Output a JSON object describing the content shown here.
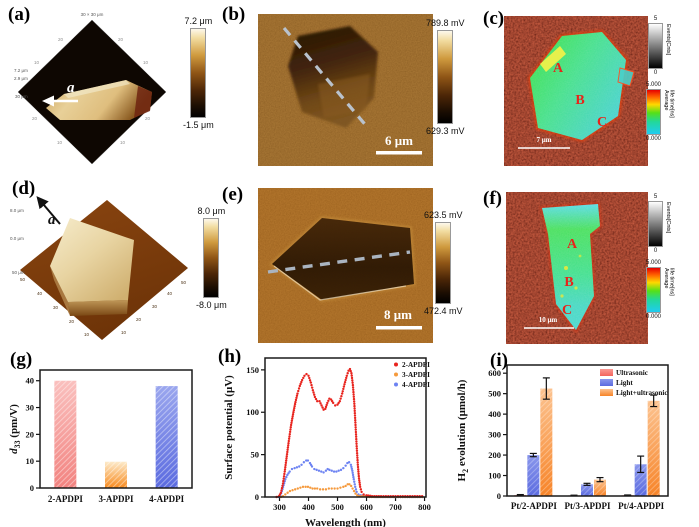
{
  "figure": {
    "panels": {
      "a": {
        "letter": "(a)",
        "arrow_label": "a",
        "top_size_label": "30 × 30 μm",
        "side_labels": [
          "7.2 μm",
          "2.9 μm",
          "30 μm"
        ],
        "ticks": [
          "10",
          "20",
          "20",
          "10",
          "20",
          "10",
          "10",
          "20"
        ],
        "colorbar": {
          "max": "7.2 μm",
          "min": "-1.5 μm"
        }
      },
      "b": {
        "letter": "(b)",
        "scale_bar": "6 μm",
        "colorbar": {
          "max": "789.8 mV",
          "min": "629.3 mV"
        }
      },
      "c": {
        "letter": "(c)",
        "scale_bar": "7 μm",
        "regions": [
          "A",
          "B",
          "C"
        ],
        "colorbar_events": {
          "max": "5",
          "min": "0",
          "title": "Events[Cnts]"
        },
        "colorbar_lifetime": {
          "max": "5.000",
          "min": "0.000",
          "title_line1": "Average",
          "title_line2": "life time[ns]"
        }
      },
      "d": {
        "letter": "(d)",
        "arrow_label": "a",
        "side_labels": [
          "8.0 μm",
          "0.0 μm",
          "50 μm"
        ],
        "ticks": [
          "50",
          "40",
          "30",
          "20",
          "10",
          "10",
          "20",
          "30",
          "40",
          "50"
        ],
        "colorbar": {
          "max": "8.0 μm",
          "min": "-8.0 μm"
        }
      },
      "e": {
        "letter": "(e)",
        "scale_bar": "8 μm",
        "colorbar": {
          "max": "623.5 mV",
          "min": "472.4 mV"
        }
      },
      "f": {
        "letter": "(f)",
        "scale_bar": "10 μm",
        "regions": [
          "A",
          "B",
          "C"
        ],
        "colorbar_events": {
          "max": "5",
          "min": "0",
          "title": "Events[Cnts]"
        },
        "colorbar_lifetime": {
          "max": "5.000",
          "min": "0.000",
          "title_line1": "Average",
          "title_line2": "life time[ns]"
        }
      },
      "g": {
        "letter": "(g)"
      },
      "h": {
        "letter": "(h)"
      },
      "i": {
        "letter": "(i)"
      }
    }
  },
  "chart_data": [
    {
      "panel": "g",
      "type": "bar",
      "categories": [
        "2-APDPI",
        "3-APDPI",
        "4-APDPI"
      ],
      "values": [
        40,
        9.8,
        38
      ],
      "ylabel": "*d*_{33} (pm/V)",
      "ylim": [
        0,
        44
      ],
      "yticks": [
        0,
        10,
        20,
        30,
        40
      ],
      "bar_colors": [
        [
          "#fac0be",
          "#f28380"
        ],
        [
          "#fdeac9",
          "#f78a1e"
        ],
        [
          "#9aa6ee",
          "#5b6be0"
        ]
      ]
    },
    {
      "panel": "h",
      "type": "scatter",
      "xlabel": "Wavelength (nm)",
      "ylabel": "Surface potential (μV)",
      "xlim": [
        250,
        805
      ],
      "ylim": [
        0,
        164
      ],
      "xticks": [
        300,
        400,
        500,
        600,
        700,
        800
      ],
      "yticks": [
        0,
        50,
        100,
        150
      ],
      "legend_position": "top-right",
      "series": [
        {
          "name": "2-APDPI",
          "color": "#e8241e",
          "points": [
            [
              290,
              0
            ],
            [
              298,
              1
            ],
            [
              305,
              5
            ],
            [
              312,
              16
            ],
            [
              318,
              30
            ],
            [
              325,
              48
            ],
            [
              332,
              66
            ],
            [
              340,
              85
            ],
            [
              348,
              100
            ],
            [
              355,
              112
            ],
            [
              362,
              122
            ],
            [
              370,
              131
            ],
            [
              378,
              138
            ],
            [
              386,
              143
            ],
            [
              393,
              145
            ],
            [
              400,
              143
            ],
            [
              408,
              135
            ],
            [
              415,
              126
            ],
            [
              422,
              118
            ],
            [
              430,
              113
            ],
            [
              438,
              113
            ],
            [
              445,
              108
            ],
            [
              452,
              103
            ],
            [
              458,
              104
            ],
            [
              465,
              111
            ],
            [
              472,
              116
            ],
            [
              478,
              115
            ],
            [
              485,
              111
            ],
            [
              492,
              108
            ],
            [
              500,
              109
            ],
            [
              508,
              113
            ],
            [
              516,
              122
            ],
            [
              524,
              133
            ],
            [
              532,
              143
            ],
            [
              538,
              149
            ],
            [
              543,
              151
            ],
            [
              548,
              146
            ],
            [
              553,
              132
            ],
            [
              558,
              110
            ],
            [
              562,
              85
            ],
            [
              566,
              60
            ],
            [
              570,
              38
            ],
            [
              574,
              22
            ],
            [
              578,
              12
            ],
            [
              583,
              6
            ],
            [
              590,
              3
            ],
            [
              600,
              2
            ],
            [
              620,
              1
            ],
            [
              650,
              1
            ],
            [
              700,
              1
            ],
            [
              750,
              1
            ],
            [
              800,
              1
            ]
          ]
        },
        {
          "name": "3-APDPI",
          "color": "#f59a3d",
          "points": [
            [
              305,
              0
            ],
            [
              312,
              1
            ],
            [
              320,
              3
            ],
            [
              328,
              5
            ],
            [
              336,
              7
            ],
            [
              345,
              8
            ],
            [
              354,
              9
            ],
            [
              363,
              10
            ],
            [
              372,
              11
            ],
            [
              381,
              12
            ],
            [
              390,
              12
            ],
            [
              398,
              12
            ],
            [
              406,
              11
            ],
            [
              414,
              10
            ],
            [
              422,
              10
            ],
            [
              430,
              10
            ],
            [
              440,
              9
            ],
            [
              450,
              9
            ],
            [
              460,
              9
            ],
            [
              470,
              10
            ],
            [
              480,
              10
            ],
            [
              490,
              10
            ],
            [
              500,
              10
            ],
            [
              510,
              11
            ],
            [
              520,
              12
            ],
            [
              528,
              13
            ],
            [
              535,
              15
            ],
            [
              541,
              15
            ],
            [
              547,
              13
            ],
            [
              552,
              10
            ],
            [
              557,
              7
            ],
            [
              562,
              4
            ],
            [
              568,
              2
            ],
            [
              575,
              1
            ],
            [
              590,
              1
            ],
            [
              610,
              0
            ],
            [
              650,
              0
            ],
            [
              700,
              0
            ],
            [
              750,
              0
            ],
            [
              800,
              0
            ]
          ]
        },
        {
          "name": "4-APDPI",
          "color": "#6d83f2",
          "points": [
            [
              298,
              0
            ],
            [
              303,
              2
            ],
            [
              308,
              7
            ],
            [
              314,
              14
            ],
            [
              320,
              21
            ],
            [
              327,
              26
            ],
            [
              335,
              30
            ],
            [
              343,
              33
            ],
            [
              352,
              34
            ],
            [
              360,
              35
            ],
            [
              368,
              36
            ],
            [
              376,
              38
            ],
            [
              384,
              41
            ],
            [
              392,
              43
            ],
            [
              398,
              43
            ],
            [
              405,
              40
            ],
            [
              412,
              36
            ],
            [
              420,
              33
            ],
            [
              428,
              32
            ],
            [
              436,
              31
            ],
            [
              444,
              30
            ],
            [
              452,
              29
            ],
            [
              460,
              31
            ],
            [
              466,
              33
            ],
            [
              472,
              32
            ],
            [
              480,
              31
            ],
            [
              488,
              30
            ],
            [
              496,
              30
            ],
            [
              504,
              31
            ],
            [
              512,
              32
            ],
            [
              520,
              34
            ],
            [
              528,
              37
            ],
            [
              534,
              40
            ],
            [
              540,
              41
            ],
            [
              546,
              38
            ],
            [
              551,
              31
            ],
            [
              556,
              21
            ],
            [
              561,
              12
            ],
            [
              566,
              6
            ],
            [
              572,
              3
            ],
            [
              580,
              2
            ],
            [
              600,
              1
            ],
            [
              630,
              0
            ],
            [
              680,
              0
            ],
            [
              740,
              0
            ],
            [
              800,
              0
            ]
          ]
        }
      ]
    },
    {
      "panel": "i",
      "type": "grouped_bar",
      "categories": [
        "Pt/2-APDPI",
        "Pt/3-APDPI",
        "Pt/4-APDPI"
      ],
      "series": [
        {
          "name": "Ultrasonic",
          "colors": [
            "#fa9a94",
            "#f4645c"
          ],
          "values": [
            5,
            3,
            4
          ],
          "errors": [
            2,
            1,
            1
          ]
        },
        {
          "name": "Light",
          "colors": [
            "#8a97ec",
            "#5b6be0"
          ],
          "values": [
            200,
            57,
            155
          ],
          "errors": [
            8,
            5,
            40
          ]
        },
        {
          "name": "Light+ultrasonic",
          "colors": [
            "#fcc390",
            "#f78428"
          ],
          "values": [
            525,
            80,
            465
          ],
          "errors": [
            52,
            10,
            28
          ]
        }
      ],
      "ylabel": "H_{2} evolution (μmol/h)",
      "ylim": [
        0,
        640
      ],
      "yticks": [
        0,
        100,
        200,
        300,
        400,
        500,
        600
      ]
    }
  ]
}
